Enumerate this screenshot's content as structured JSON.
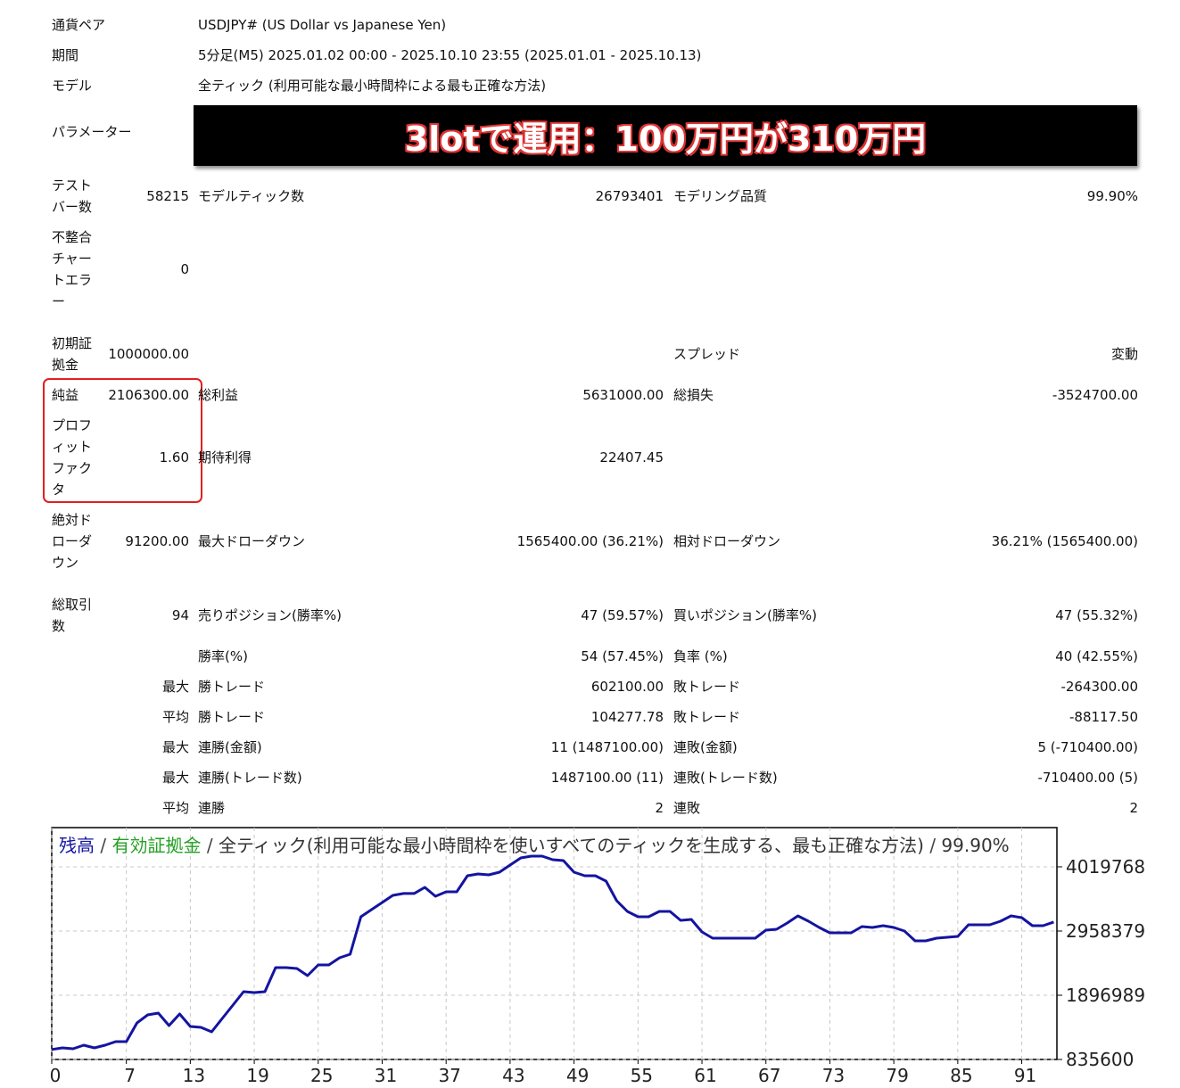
{
  "report": {
    "info": [
      {
        "label": "通貨ペア",
        "value": "USDJPY# (US Dollar vs Japanese Yen)"
      },
      {
        "label": "期間",
        "value": "5分足(M5) 2025.01.02 00:00 - 2025.10.10 23:55 (2025.01.01 - 2025.10.13)"
      },
      {
        "label": "モデル",
        "value": "全ティック (利用可能な最小時間枠による最も正確な方法)"
      }
    ],
    "parameter": {
      "label": "パラメーター",
      "banner": "3lotで運用：100万円が310万円"
    },
    "rows": [
      {
        "label": "テストバー数",
        "value": "58215",
        "label2": "モデルティック数",
        "value2": "26793401",
        "label3": "モデリング品質",
        "value3": "99.90%"
      },
      {
        "label": "不整合チャートエラー",
        "value": "0"
      },
      {
        "label": "初期証拠金",
        "value": "1000000.00",
        "label3": "スプレッド",
        "value3": "変動"
      },
      {
        "label": "純益",
        "value": "2106300.00",
        "label2": "総利益",
        "value2": "5631000.00",
        "label3": "総損失",
        "value3": "-3524700.00"
      },
      {
        "label": "プロフィットファクタ",
        "value": "1.60",
        "label2": "期待利得",
        "value2": "22407.45"
      },
      {
        "label": "絶対ドローダウン",
        "value": "91200.00",
        "label2": "最大ドローダウン",
        "value2": "1565400.00 (36.21%)",
        "label3": "相対ドローダウン",
        "value3": "36.21% (1565400.00)"
      },
      {
        "label": "総取引数",
        "value": "94",
        "label2": "売りポジション(勝率%)",
        "value2": "47 (59.57%)",
        "label3": "買いポジション(勝率%)",
        "value3": "47 (55.32%)"
      },
      {
        "label2": "勝率(%)",
        "value2": "54 (57.45%)",
        "label3": "負率 (%)",
        "value3": "40 (42.55%)"
      },
      {
        "value": "最大",
        "label2": "勝トレード",
        "value2": "602100.00",
        "label3": "敗トレード",
        "value3": "-264300.00"
      },
      {
        "value": "平均",
        "label2": "勝トレード",
        "value2": "104277.78",
        "label3": "敗トレード",
        "value3": "-88117.50"
      },
      {
        "value": "最大",
        "label2": "連勝(金額)",
        "value2": "11 (1487100.00)",
        "label3": "連敗(金額)",
        "value3": "5 (-710400.00)"
      },
      {
        "value": "最大",
        "label2": "連勝(トレード数)",
        "value2": "1487100.00 (11)",
        "label3": "連敗(トレード数)",
        "value3": "-710400.00 (5)"
      },
      {
        "value": "平均",
        "label2": "連勝",
        "value2": "2",
        "label3": "連敗",
        "value3": "2"
      }
    ]
  },
  "chart_data": {
    "type": "line",
    "series": [
      {
        "name": "残高",
        "color": "#1414a0",
        "values": [
          1000000,
          1027000,
          1012000,
          1071000,
          1027000,
          1071000,
          1130000,
          1130000,
          1440000,
          1573000,
          1602000,
          1396000,
          1587000,
          1381000,
          1366000,
          1293000,
          1514000,
          1735000,
          1956000,
          1941000,
          1956000,
          2354000,
          2354000,
          2339000,
          2221000,
          2398000,
          2398000,
          2516000,
          2575000,
          3194000,
          3312000,
          3430000,
          3548000,
          3578000,
          3578000,
          3681000,
          3533000,
          3607000,
          3607000,
          3872000,
          3902000,
          3887000,
          3931000,
          4049000,
          4167000,
          4197000,
          4197000,
          4138000,
          4123000,
          3931000,
          3872000,
          3872000,
          3784000,
          3460000,
          3283000,
          3194000,
          3194000,
          3283000,
          3283000,
          3135000,
          3150000,
          2944000,
          2840000,
          2840000,
          2840000,
          2840000,
          2840000,
          2973000,
          2988000,
          3091000,
          3209000,
          3121000,
          3017000,
          2929000,
          2929000,
          2929000,
          3032000,
          3017000,
          3047000,
          3017000,
          2958000,
          2796000,
          2796000,
          2840000,
          2855000,
          2870000,
          3062000,
          3062000,
          3062000,
          3121000,
          3209000,
          3179000,
          3047000,
          3047000,
          3106300
        ]
      }
    ],
    "x": [
      0,
      1,
      2,
      3,
      4,
      5,
      6,
      7,
      8,
      9,
      10,
      11,
      12,
      13,
      14,
      15,
      16,
      17,
      18,
      19,
      20,
      21,
      22,
      23,
      24,
      25,
      26,
      27,
      28,
      29,
      30,
      31,
      32,
      33,
      34,
      35,
      36,
      37,
      38,
      39,
      40,
      41,
      42,
      43,
      44,
      45,
      46,
      47,
      48,
      49,
      50,
      51,
      52,
      53,
      54,
      55,
      56,
      57,
      58,
      59,
      60,
      61,
      62,
      63,
      64,
      65,
      66,
      67,
      68,
      69,
      70,
      71,
      72,
      73,
      74,
      75,
      76,
      77,
      78,
      79,
      80,
      81,
      82,
      83,
      84,
      85,
      86,
      87,
      88,
      89,
      90,
      91,
      92,
      93,
      94
    ],
    "equity_label": "有効証拠金",
    "equity_color": "#22a022",
    "separator": "/",
    "subtitle": "全ティック(利用可能な最小時間枠を使いすべてのティックを生成する、最も正確な方法)",
    "quality": "99.90%",
    "xlim": [
      0,
      94.3
    ],
    "xticks": [
      0,
      7,
      13,
      19,
      25,
      31,
      37,
      43,
      49,
      55,
      61,
      67,
      73,
      79,
      85,
      91
    ],
    "ylim": [
      835600,
      4668000
    ],
    "yticks": [
      835600,
      1896989,
      2958379,
      4019768
    ],
    "grid": true
  }
}
